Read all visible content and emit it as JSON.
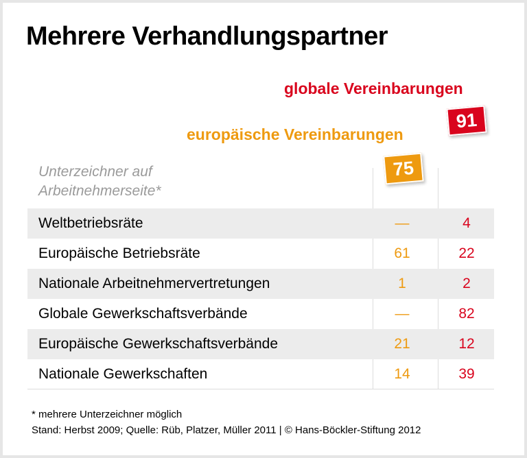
{
  "title": "Mehrere Verhandlungspartner",
  "columns": {
    "global_label": "globale Vereinbarungen",
    "global_total": "91",
    "europe_label": "europäische Vereinbarungen",
    "europe_total": "75",
    "row_header": [
      "Unterzeichner auf",
      "Arbeitnehmerseite*"
    ]
  },
  "colors": {
    "europe": "#ee9a10",
    "global": "#d9041d"
  },
  "chart_data": {
    "type": "table",
    "title": "Mehrere Verhandlungspartner",
    "headers": [
      "Unterzeichner auf Arbeitnehmerseite*",
      "europäische Vereinbarungen",
      "globale Vereinbarungen"
    ],
    "totals": {
      "europäische Vereinbarungen": 75,
      "globale Vereinbarungen": 91
    },
    "rows": [
      {
        "name": "Weltbetriebsräte",
        "eu": "—",
        "gl": "4"
      },
      {
        "name": "Europäische Betriebsräte",
        "eu": "61",
        "gl": "22"
      },
      {
        "name": "Nationale Arbeitnehmervertretungen",
        "eu": "1",
        "gl": "2"
      },
      {
        "name": "Globale Gewerkschaftsverbände",
        "eu": "—",
        "gl": "82"
      },
      {
        "name": "Europäische Gewerkschaftsverbände",
        "eu": "21",
        "gl": "12"
      },
      {
        "name": "Nationale Gewerkschaften",
        "eu": "14",
        "gl": "39"
      }
    ]
  },
  "footnote": "* mehrere Unterzeichner möglich",
  "source": "Stand: Herbst 2009; Quelle: Rüb, Platzer, Müller 2011 | © Hans-Böckler-Stiftung 2012"
}
